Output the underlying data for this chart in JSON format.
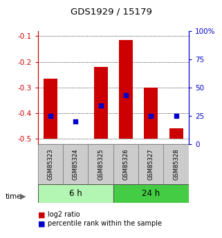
{
  "title": "GDS1929 / 15179",
  "samples": [
    "GSM85323",
    "GSM85324",
    "GSM85325",
    "GSM85326",
    "GSM85327",
    "GSM85328"
  ],
  "log2_ratios": [
    -0.265,
    -0.5,
    -0.22,
    -0.115,
    -0.3,
    -0.46
  ],
  "log2_bottoms": [
    -0.5,
    -0.5,
    -0.5,
    -0.5,
    -0.5,
    -0.5
  ],
  "percentile_ranks": [
    25,
    20,
    34,
    43,
    25,
    25
  ],
  "ylim_left": [
    -0.52,
    -0.08
  ],
  "ylim_right": [
    0,
    100
  ],
  "yticks_left": [
    -0.5,
    -0.4,
    -0.3,
    -0.2,
    -0.1
  ],
  "yticks_right": [
    0,
    25,
    50,
    75,
    100
  ],
  "groups": [
    {
      "label": "6 h",
      "samples": [
        0,
        1,
        2
      ],
      "color": "#b3f5b3"
    },
    {
      "label": "24 h",
      "samples": [
        3,
        4,
        5
      ],
      "color": "#44cc44"
    }
  ],
  "bar_color": "#cc0000",
  "dot_color": "#0000cc",
  "bar_width": 0.55,
  "bg_color": "#ffffff",
  "plot_bg": "#ffffff",
  "title_color": "#000000",
  "left_axis_color": "#cc0000",
  "right_axis_color": "#0000cc",
  "time_label": "time",
  "legend_log2": "log2 ratio",
  "legend_pct": "percentile rank within the sample",
  "sample_box_color": "#cccccc",
  "sample_box_edge": "#888888"
}
